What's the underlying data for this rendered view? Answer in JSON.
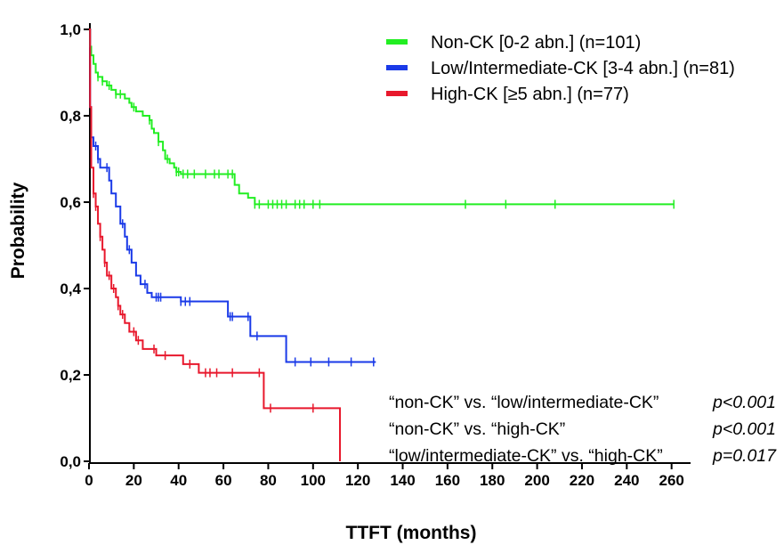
{
  "chart_data": {
    "type": "line",
    "title": "",
    "xlabel": "TTFT (months)",
    "ylabel": "Probability",
    "xlim": [
      0,
      270
    ],
    "ylim": [
      0,
      1
    ],
    "x_ticks": [
      0,
      20,
      40,
      60,
      80,
      100,
      120,
      140,
      160,
      180,
      200,
      220,
      240,
      260
    ],
    "x_tick_labels": [
      "0",
      "20",
      "40",
      "60",
      "80",
      "100",
      "120",
      "140",
      "160",
      "180",
      "200",
      "220",
      "240",
      "260"
    ],
    "y_ticks": [
      0,
      0.2,
      0.4,
      0.6,
      0.8,
      1.0
    ],
    "y_tick_labels": [
      "0,0",
      "0,2",
      "0,4",
      "0,6",
      "0,8",
      "1,0"
    ],
    "grid": false,
    "legend_position": "top-right",
    "series": [
      {
        "name": "Non-CK [0-2 abn.] (n=101)",
        "color": "#22ee22",
        "steps": [
          [
            0,
            1.0
          ],
          [
            0.5,
            0.96
          ],
          [
            1,
            0.94
          ],
          [
            2,
            0.92
          ],
          [
            3,
            0.9
          ],
          [
            4,
            0.89
          ],
          [
            6,
            0.88
          ],
          [
            8,
            0.87
          ],
          [
            10,
            0.86
          ],
          [
            12,
            0.85
          ],
          [
            16,
            0.84
          ],
          [
            18,
            0.83
          ],
          [
            19,
            0.82
          ],
          [
            21,
            0.81
          ],
          [
            24,
            0.8
          ],
          [
            27,
            0.79
          ],
          [
            28,
            0.77
          ],
          [
            29,
            0.76
          ],
          [
            31,
            0.74
          ],
          [
            33,
            0.72
          ],
          [
            34,
            0.7
          ],
          [
            36,
            0.69
          ],
          [
            38,
            0.68
          ],
          [
            39,
            0.67
          ],
          [
            41,
            0.665
          ],
          [
            65,
            0.64
          ],
          [
            67,
            0.62
          ],
          [
            71,
            0.61
          ],
          [
            74,
            0.595
          ]
        ],
        "end_x": 261,
        "censors": [
          4,
          6,
          9,
          12,
          14,
          20,
          27,
          31,
          35,
          39,
          40,
          42,
          44,
          47,
          52,
          56,
          58,
          62,
          64,
          74,
          76,
          80,
          82,
          84,
          86,
          88,
          92,
          94,
          96,
          100,
          103,
          168,
          186,
          208,
          261
        ]
      },
      {
        "name": "Low/Intermediate-CK [3-4 abn.] (n=81)",
        "color": "#1a3ae8",
        "steps": [
          [
            0,
            1.0
          ],
          [
            0.5,
            0.82
          ],
          [
            1,
            0.75
          ],
          [
            2,
            0.73
          ],
          [
            4,
            0.7
          ],
          [
            5,
            0.68
          ],
          [
            9,
            0.65
          ],
          [
            10,
            0.62
          ],
          [
            12,
            0.59
          ],
          [
            14,
            0.55
          ],
          [
            16,
            0.52
          ],
          [
            17,
            0.49
          ],
          [
            19,
            0.46
          ],
          [
            21,
            0.43
          ],
          [
            23,
            0.41
          ],
          [
            26,
            0.39
          ],
          [
            28,
            0.38
          ],
          [
            41,
            0.37
          ],
          [
            62,
            0.335
          ],
          [
            72,
            0.29
          ],
          [
            88,
            0.23
          ]
        ],
        "end_x": 128,
        "censors": [
          3,
          4,
          8,
          15,
          18,
          25,
          30,
          31,
          32,
          41,
          43,
          45,
          63,
          64,
          71,
          75,
          92,
          99,
          107,
          117,
          127
        ]
      },
      {
        "name": "High-CK [≥5 abn.] (n=77)",
        "color": "#e8182c",
        "steps": [
          [
            0,
            1.0
          ],
          [
            0.5,
            0.82
          ],
          [
            1,
            0.68
          ],
          [
            2,
            0.62
          ],
          [
            3,
            0.59
          ],
          [
            4,
            0.55
          ],
          [
            5,
            0.52
          ],
          [
            6,
            0.49
          ],
          [
            7,
            0.46
          ],
          [
            8,
            0.43
          ],
          [
            10,
            0.4
          ],
          [
            12,
            0.38
          ],
          [
            13,
            0.36
          ],
          [
            14,
            0.34
          ],
          [
            16,
            0.32
          ],
          [
            18,
            0.3
          ],
          [
            21,
            0.28
          ],
          [
            24,
            0.26
          ],
          [
            30,
            0.245
          ],
          [
            42,
            0.225
          ],
          [
            49,
            0.205
          ],
          [
            78,
            0.123
          ],
          [
            112,
            0.0
          ]
        ],
        "end_x": 112,
        "censors": [
          2,
          3,
          5,
          7,
          9,
          11,
          13,
          15,
          20,
          22,
          29,
          34,
          45,
          52,
          54,
          57,
          64,
          76,
          81,
          100
        ]
      }
    ],
    "annotations": [
      {
        "comparison": "“non-CK” vs. “low/intermediate-CK”",
        "p": "p<0.001"
      },
      {
        "comparison": "“non-CK” vs. “high-CK”",
        "p": "p<0.001"
      },
      {
        "comparison": "“low/intermediate-CK” vs. “high-CK”",
        "p": "p=0.017"
      }
    ]
  }
}
